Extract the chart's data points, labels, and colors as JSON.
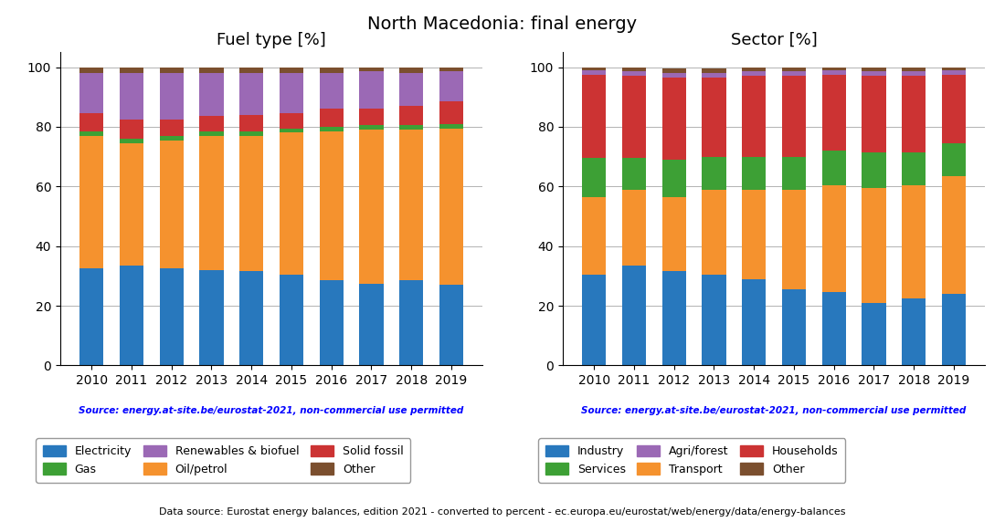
{
  "title": "North Macedonia: final energy",
  "years": [
    2010,
    2011,
    2012,
    2013,
    2014,
    2015,
    2016,
    2017,
    2018,
    2019
  ],
  "fuel": {
    "title": "Fuel type [%]",
    "electricity": [
      32.5,
      33.5,
      32.5,
      32.0,
      31.5,
      30.5,
      28.5,
      27.5,
      28.5,
      27.0
    ],
    "oil_petrol": [
      44.5,
      41.0,
      43.0,
      45.0,
      45.5,
      47.5,
      50.0,
      51.5,
      50.5,
      52.5
    ],
    "gas": [
      1.5,
      1.5,
      1.5,
      1.5,
      1.5,
      1.5,
      1.5,
      1.5,
      1.5,
      1.5
    ],
    "solid_fossil": [
      6.0,
      6.5,
      5.5,
      5.0,
      5.5,
      5.0,
      6.0,
      5.5,
      6.5,
      7.5
    ],
    "renewables": [
      13.5,
      15.5,
      15.5,
      14.5,
      14.0,
      13.5,
      12.0,
      12.5,
      11.0,
      10.0
    ],
    "other": [
      2.0,
      2.0,
      2.0,
      2.0,
      2.0,
      2.0,
      2.0,
      1.5,
      2.0,
      1.5
    ]
  },
  "sector": {
    "title": "Sector [%]",
    "industry": [
      30.5,
      33.5,
      31.5,
      30.5,
      29.0,
      25.5,
      24.5,
      21.0,
      22.5,
      24.0
    ],
    "transport": [
      26.0,
      25.5,
      25.0,
      28.5,
      30.0,
      33.5,
      36.0,
      38.5,
      38.0,
      39.5
    ],
    "services": [
      13.0,
      10.5,
      12.5,
      11.0,
      11.0,
      11.0,
      11.5,
      12.0,
      11.0,
      11.0
    ],
    "households": [
      28.0,
      27.5,
      27.5,
      26.5,
      27.0,
      27.0,
      25.5,
      25.5,
      25.5,
      23.0
    ],
    "agri_forest": [
      1.5,
      1.5,
      1.5,
      1.5,
      1.5,
      1.5,
      1.5,
      1.5,
      1.5,
      1.5
    ],
    "other": [
      1.0,
      1.5,
      1.5,
      1.5,
      1.5,
      1.5,
      1.0,
      1.5,
      1.5,
      1.0
    ]
  },
  "colors": {
    "electricity": "#2878bd",
    "oil_petrol": "#f5922e",
    "gas": "#3da035",
    "solid_fossil": "#cc3333",
    "renewables": "#9b69b5",
    "other_fuel": "#7b4f2e",
    "industry": "#2878bd",
    "transport": "#f5922e",
    "services": "#3da035",
    "households": "#cc3333",
    "agri_forest": "#9b69b5",
    "other_sector": "#7b4f2e"
  },
  "source_text": "Source: energy.at-site.be/eurostat-2021, non-commercial use permitted",
  "footer_text": "Data source: Eurostat energy balances, edition 2021 - converted to percent - ec.europa.eu/eurostat/web/energy/data/energy-balances"
}
